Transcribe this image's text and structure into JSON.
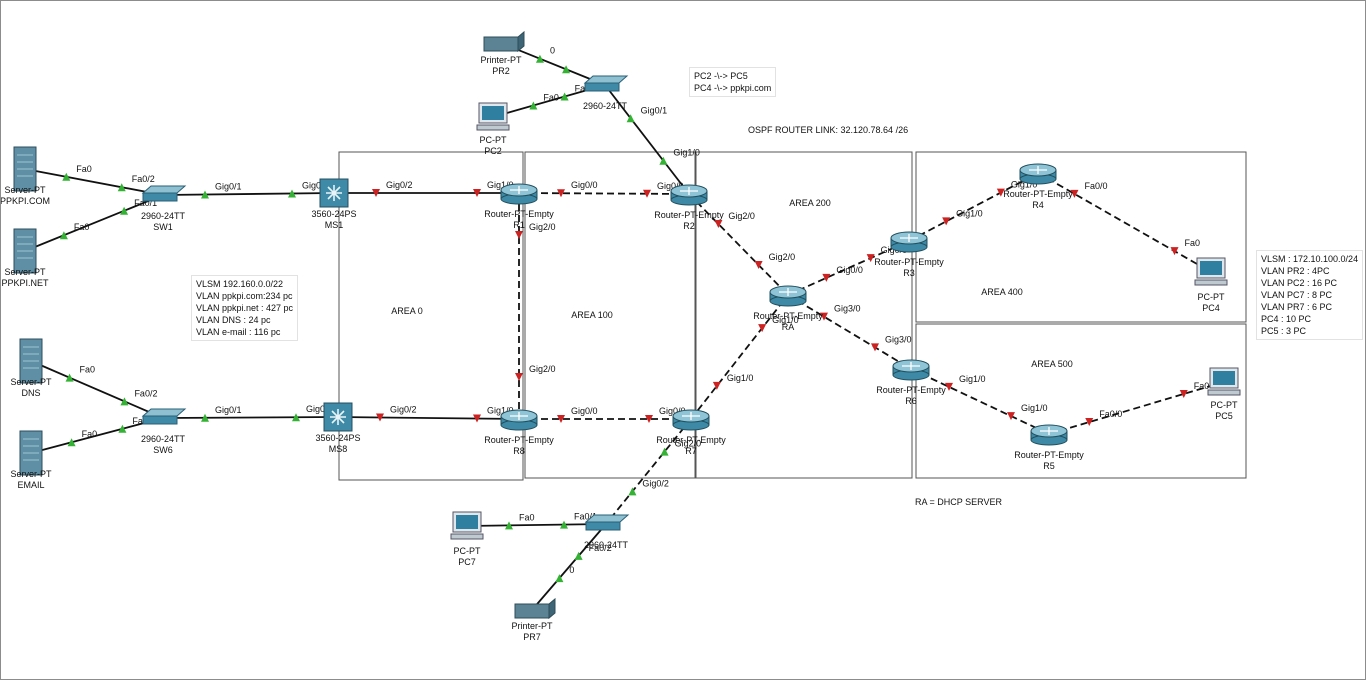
{
  "colors": {
    "link_up": "#33b233",
    "link_down": "#cc2222",
    "cable": "#111111",
    "area_border": "#555555"
  },
  "areas": [
    {
      "id": "area0",
      "label": "AREA 0"
    },
    {
      "id": "area100",
      "label": "AREA 100"
    },
    {
      "id": "area200",
      "label": "AREA 200"
    },
    {
      "id": "area400",
      "label": "AREA 400"
    },
    {
      "id": "area500",
      "label": "AREA 500"
    }
  ],
  "devices": [
    {
      "id": "srv-ppkpi-com",
      "kind": "server",
      "icon": "server-icon",
      "type": "Server-PT",
      "name": "PPKPI.COM"
    },
    {
      "id": "srv-ppkpi-net",
      "kind": "server",
      "icon": "server-icon",
      "type": "Server-PT",
      "name": "PPKPI.NET"
    },
    {
      "id": "srv-dns",
      "kind": "server",
      "icon": "server-icon",
      "type": "Server-PT",
      "name": "DNS"
    },
    {
      "id": "srv-email",
      "kind": "server",
      "icon": "server-icon",
      "type": "Server-PT",
      "name": "EMAIL"
    },
    {
      "id": "sw1",
      "kind": "switch",
      "icon": "switch-icon",
      "type": "2960-24TT",
      "name": "SW1"
    },
    {
      "id": "sw6",
      "kind": "switch",
      "icon": "switch-icon",
      "type": "2960-24TT",
      "name": "SW6"
    },
    {
      "id": "sw2",
      "kind": "switch",
      "icon": "switch-icon",
      "type": "2960-24TT",
      "name": ""
    },
    {
      "id": "sw7",
      "kind": "switch",
      "icon": "switch-icon",
      "type": "2960-24TT",
      "name": ""
    },
    {
      "id": "ms1",
      "kind": "multilayer",
      "icon": "multilayer-switch-icon",
      "type": "3560-24PS",
      "name": "MS1"
    },
    {
      "id": "ms8",
      "kind": "multilayer",
      "icon": "multilayer-switch-icon",
      "type": "3560-24PS",
      "name": "MS8"
    },
    {
      "id": "r1",
      "kind": "router",
      "icon": "router-icon",
      "type": "Router-PT-Empty",
      "name": "R1"
    },
    {
      "id": "r2",
      "kind": "router",
      "icon": "router-icon",
      "type": "Router-PT-Empty",
      "name": "R2"
    },
    {
      "id": "r8",
      "kind": "router",
      "icon": "router-icon",
      "type": "Router-PT-Empty",
      "name": "R8"
    },
    {
      "id": "r7",
      "kind": "router",
      "icon": "router-icon",
      "type": "Router-PT-Empty",
      "name": "R7"
    },
    {
      "id": "ra",
      "kind": "router",
      "icon": "router-icon",
      "type": "Router-PT-Empty",
      "name": "RA"
    },
    {
      "id": "r3",
      "kind": "router",
      "icon": "router-icon",
      "type": "Router-PT-Empty",
      "name": "R3"
    },
    {
      "id": "r4",
      "kind": "router",
      "icon": "router-icon",
      "type": "Router-PT-Empty",
      "name": "R4"
    },
    {
      "id": "r6",
      "kind": "router",
      "icon": "router-icon",
      "type": "Router-PT-Empty",
      "name": "R6"
    },
    {
      "id": "r5",
      "kind": "router",
      "icon": "router-icon",
      "type": "Router-PT-Empty",
      "name": "R5"
    },
    {
      "id": "pc2",
      "kind": "pc",
      "icon": "pc-icon",
      "type": "PC-PT",
      "name": "PC2"
    },
    {
      "id": "pc4",
      "kind": "pc",
      "icon": "pc-icon",
      "type": "PC-PT",
      "name": "PC4"
    },
    {
      "id": "pc5",
      "kind": "pc",
      "icon": "pc-icon",
      "type": "PC-PT",
      "name": "PC5"
    },
    {
      "id": "pc7",
      "kind": "pc",
      "icon": "pc-icon",
      "type": "PC-PT",
      "name": "PC7"
    },
    {
      "id": "pr2",
      "kind": "printer",
      "icon": "printer-icon",
      "type": "Printer-PT",
      "name": "PR2"
    },
    {
      "id": "pr7",
      "kind": "printer",
      "icon": "printer-icon",
      "type": "Printer-PT",
      "name": "PR7"
    }
  ],
  "links": [
    {
      "from": "srv-ppkpi-com",
      "to": "sw1",
      "a_label": "Fa0",
      "b_label": "Fa0/2",
      "style": "solid",
      "status": "up"
    },
    {
      "from": "srv-ppkpi-net",
      "to": "sw1",
      "a_label": "Fa0",
      "b_label": "Fa0/1",
      "style": "solid",
      "status": "up"
    },
    {
      "from": "sw1",
      "to": "ms1",
      "a_label": "Gig0/1",
      "b_label": "Gig0/1",
      "style": "solid",
      "status": "up"
    },
    {
      "from": "ms1",
      "to": "r1",
      "a_label": "Gig0/2",
      "b_label": "Gig1/0",
      "style": "solid",
      "status": "down"
    },
    {
      "from": "r1",
      "to": "r2",
      "a_label": "Gig0/0",
      "b_label": "Gig0/0",
      "style": "dashed",
      "status": "down"
    },
    {
      "from": "r1",
      "to": "r8",
      "a_label": "Gig2/0",
      "b_label": "Gig2/0",
      "style": "dashed",
      "status": "down"
    },
    {
      "from": "srv-dns",
      "to": "sw6",
      "a_label": "Fa0",
      "b_label": "Fa0/2",
      "style": "solid",
      "status": "up"
    },
    {
      "from": "srv-email",
      "to": "sw6",
      "a_label": "Fa0",
      "b_label": "Fa0/1",
      "style": "solid",
      "status": "up"
    },
    {
      "from": "sw6",
      "to": "ms8",
      "a_label": "Gig0/1",
      "b_label": "Gig0/1",
      "style": "solid",
      "status": "up"
    },
    {
      "from": "ms8",
      "to": "r8",
      "a_label": "Gig0/2",
      "b_label": "Gig1/0",
      "style": "solid",
      "status": "down"
    },
    {
      "from": "r8",
      "to": "r7",
      "a_label": "Gig0/0",
      "b_label": "Gig0/0",
      "style": "dashed",
      "status": "down"
    },
    {
      "from": "pr2",
      "to": "sw2",
      "a_label": "0",
      "b_label": "",
      "style": "solid",
      "status": "up"
    },
    {
      "from": "pc2",
      "to": "sw2",
      "a_label": "Fa0",
      "b_label": "Fa0/2",
      "style": "solid",
      "status": "up"
    },
    {
      "from": "sw2",
      "to": "r2",
      "a_label": "Gig0/1",
      "b_label": "Gig1/0",
      "style": "solid",
      "status": "up"
    },
    {
      "from": "r2",
      "to": "ra",
      "a_label": "Gig2/0",
      "b_label": "Gig2/0",
      "style": "dashed",
      "status": "down"
    },
    {
      "from": "r7",
      "to": "ra",
      "a_label": "Gig1/0",
      "b_label": "Gig1/0",
      "style": "dashed",
      "status": "down"
    },
    {
      "from": "r7",
      "to": "sw7",
      "a_label": "Gig2/0",
      "b_label": "Gig0/2",
      "style": "dashed",
      "status": "up"
    },
    {
      "from": "pc7",
      "to": "sw7",
      "a_label": "Fa0",
      "b_label": "Fa0/1",
      "style": "solid",
      "status": "up"
    },
    {
      "from": "pr7",
      "to": "sw7",
      "a_label": "0",
      "b_label": "Fa0/2",
      "style": "solid",
      "status": "up"
    },
    {
      "from": "ra",
      "to": "r3",
      "a_label": "Gig0/0",
      "b_label": "Gig0/0",
      "style": "dashed",
      "status": "down"
    },
    {
      "from": "ra",
      "to": "r6",
      "a_label": "Gig3/0",
      "b_label": "Gig3/0",
      "style": "dashed",
      "status": "down"
    },
    {
      "from": "r3",
      "to": "r4",
      "a_label": "Gig1/0",
      "b_label": "Gig1/0",
      "style": "dashed",
      "status": "down"
    },
    {
      "from": "r4",
      "to": "pc4",
      "a_label": "Fa0/0",
      "b_label": "Fa0",
      "style": "dashed",
      "status": "down"
    },
    {
      "from": "r6",
      "to": "r5",
      "a_label": "Gig1/0",
      "b_label": "Gig1/0",
      "style": "dashed",
      "status": "down"
    },
    {
      "from": "r5",
      "to": "pc5",
      "a_label": "Fa0/0",
      "b_label": "Fa0",
      "style": "dashed",
      "status": "down"
    }
  ],
  "notes": {
    "vlsm_left": "VLSM 192.160.0.0/22\nVLAN ppkpi.com:234 pc\nVLAN ppkpi.net : 427 pc\nVLAN DNS : 24 pc\nVLAN e-mail : 116 pc",
    "routes": "PC2 -\\-> PC5\nPC4 -\\-> ppkpi.com",
    "ospf": "OSPF ROUTER LINK: 32.120.78.64 /26",
    "vlsm_right": "VLSM : 172.10.100.0/24\nVLAN PR2 : 4PC\nVLAN PC2 : 16 PC\nVLAN PC7 : 8 PC\nVLAN PR7 : 6 PC\nPC4 : 10 PC\nPC5 : 3 PC",
    "dhcp": "RA = DHCP SERVER"
  }
}
